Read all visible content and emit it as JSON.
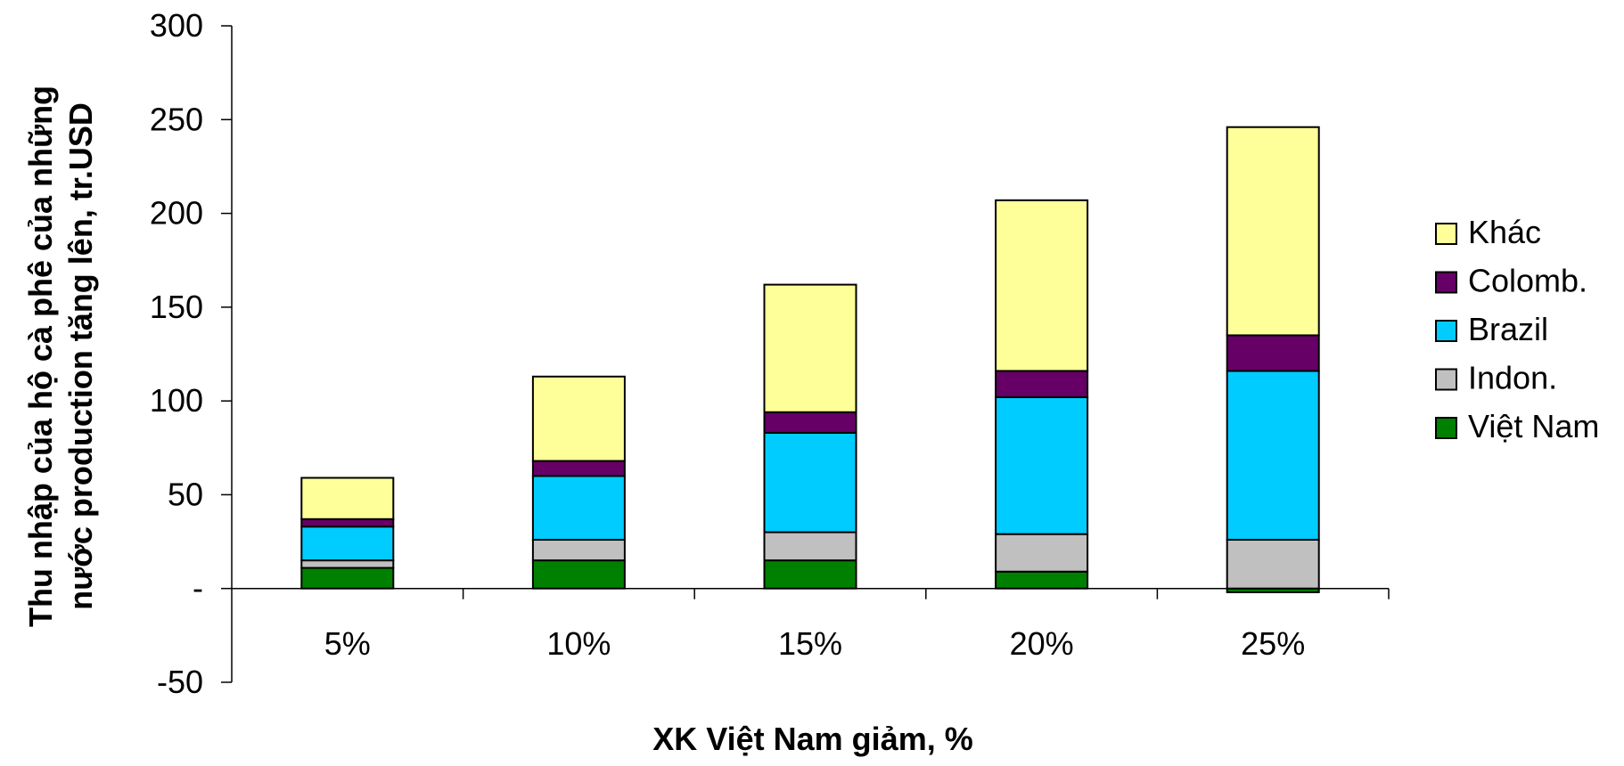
{
  "chart_data": {
    "type": "bar",
    "stacked": true,
    "xlabel": "XK Việt Nam giảm, %",
    "ylabel_lines": [
      "Thu nhập của hộ cà phê của những",
      "nước production tăng lên, tr.USD"
    ],
    "categories": [
      "5%",
      "10%",
      "15%",
      "20%",
      "25%"
    ],
    "ylim": [
      -50,
      300
    ],
    "yticks": [
      -50,
      0,
      50,
      100,
      150,
      200,
      250,
      300
    ],
    "ytick_labels": [
      "-50",
      "-",
      "50",
      "100",
      "150",
      "200",
      "250",
      "300"
    ],
    "legend_position": "right",
    "series": [
      {
        "name": "Việt Nam",
        "color": "#008000",
        "values": [
          11,
          15,
          15,
          9,
          -2
        ]
      },
      {
        "name": "Indon.",
        "color": "#C0C0C0",
        "values": [
          4,
          11,
          15,
          20,
          26
        ]
      },
      {
        "name": "Brazil",
        "color": "#00CCFF",
        "values": [
          18,
          34,
          53,
          73,
          90
        ]
      },
      {
        "name": "Colomb.",
        "color": "#660066",
        "values": [
          4,
          8,
          11,
          14,
          19
        ]
      },
      {
        "name": "Khác",
        "color": "#FFFF99",
        "values": [
          22,
          45,
          68,
          91,
          111
        ]
      }
    ]
  }
}
